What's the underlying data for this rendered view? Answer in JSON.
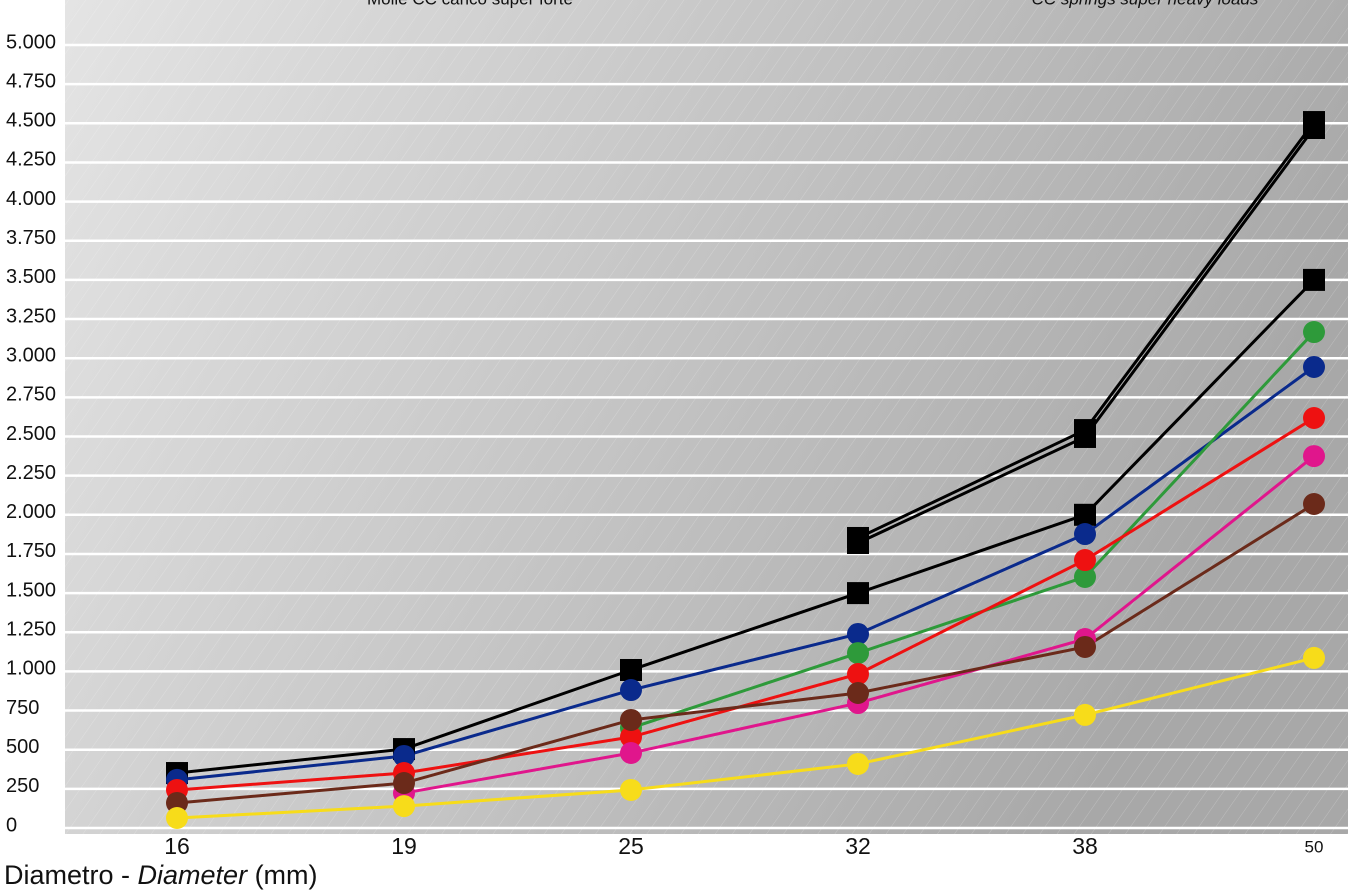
{
  "chart_data": {
    "type": "line",
    "title": "Molle CC carico super forte",
    "subtitle": "CC springs super heavy loads",
    "xlabel": {
      "main": "Diametro - ",
      "italic": "Diameter",
      "unit": " (mm)"
    },
    "categories": [
      "16",
      "19",
      "25",
      "32",
      "38",
      "50"
    ],
    "ylim": [
      0,
      5000
    ],
    "yticks": [
      0,
      250,
      500,
      750,
      {
        "value": 1000,
        "label": "1.000"
      },
      {
        "value": 1250,
        "label": "1.250"
      },
      {
        "value": 1500,
        "label": "1.500"
      },
      {
        "value": 1750,
        "label": "1.750"
      },
      {
        "value": 2000,
        "label": "2.000"
      },
      {
        "value": 2250,
        "label": "2.250"
      },
      {
        "value": 2500,
        "label": "2.500"
      },
      {
        "value": 2750,
        "label": "2.750"
      },
      {
        "value": 3000,
        "label": "3.000"
      },
      {
        "value": 3250,
        "label": "3.250"
      },
      {
        "value": 3500,
        "label": "3.500"
      },
      {
        "value": 3750,
        "label": "3.750"
      },
      {
        "value": 4000,
        "label": "4.000"
      },
      {
        "value": 4250,
        "label": "4.250"
      },
      {
        "value": 4500,
        "label": "4.500"
      },
      {
        "value": 4750,
        "label": "4.750"
      },
      {
        "value": 5000,
        "label": "5.000"
      }
    ],
    "grid": true,
    "series": [
      {
        "color": "#000000",
        "marker": "square",
        "values": [
          null,
          null,
          null,
          1820,
          2497,
          4470
        ]
      },
      {
        "color": "#000000",
        "marker": "square",
        "values": [
          null,
          null,
          null,
          1852,
          2541,
          4508
        ]
      },
      {
        "color": "#000000",
        "marker": "square",
        "values": [
          351,
          504,
          1009,
          1500,
          2000,
          3500
        ]
      },
      {
        "color": "#0a2a8c",
        "marker": "circle",
        "values": [
          307,
          460,
          881,
          1239,
          1877,
          2944
        ]
      },
      {
        "color": "#2e9a3a",
        "marker": "circle",
        "values": [
          null,
          null,
          639,
          1117,
          1603,
          3167
        ]
      },
      {
        "color": "#ee1111",
        "marker": "circle",
        "values": [
          243,
          351,
          581,
          983,
          1711,
          2618
        ]
      },
      {
        "color": "#e0168c",
        "marker": "circle",
        "values": [
          null,
          223,
          479,
          798,
          1207,
          2375
        ]
      },
      {
        "color": "#6b2a1a",
        "marker": "circle",
        "values": [
          160,
          287,
          690,
          862,
          1156,
          2069
        ]
      },
      {
        "color": "#f7dc1a",
        "marker": "circle",
        "values": [
          64,
          140,
          243,
          409,
          722,
          1086
        ]
      }
    ]
  }
}
